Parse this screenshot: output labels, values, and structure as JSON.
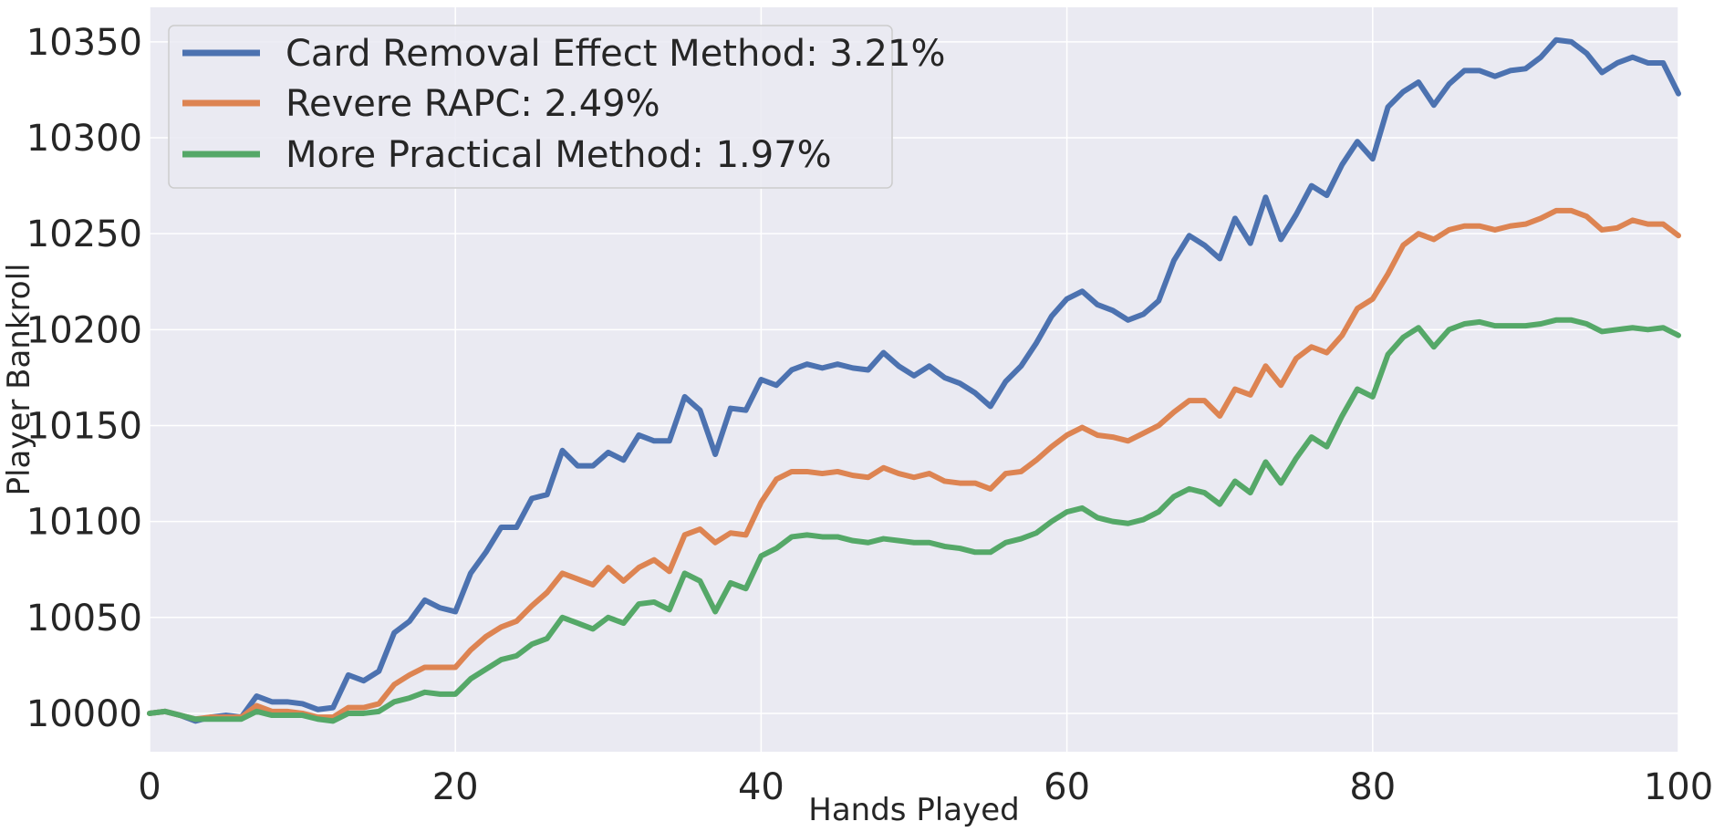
{
  "chart_data": {
    "type": "line",
    "title": "",
    "xlabel": "Hands Played",
    "ylabel": "Player Bankroll",
    "xlim": [
      0,
      100
    ],
    "ylim": [
      9980,
      10368
    ],
    "xticks": [
      0,
      20,
      40,
      60,
      80,
      100
    ],
    "yticks": [
      10000,
      10050,
      10100,
      10150,
      10200,
      10250,
      10300,
      10350
    ],
    "grid": true,
    "legend_position": "top-left",
    "colors": {
      "background": "#eaeaf2",
      "grid": "#ffffff",
      "text": "#262626"
    },
    "series": [
      {
        "name": "Card Removal Effect Method: 3.21%",
        "color": "#4c72b0",
        "values": [
          10000,
          10001,
          9999,
          9996,
          9998,
          9999,
          9998,
          10009,
          10006,
          10006,
          10005,
          10002,
          10003,
          10020,
          10017,
          10022,
          10042,
          10048,
          10059,
          10055,
          10053,
          10073,
          10084,
          10097,
          10097,
          10112,
          10114,
          10137,
          10129,
          10129,
          10136,
          10132,
          10145,
          10142,
          10142,
          10165,
          10158,
          10135,
          10159,
          10158,
          10174,
          10171,
          10179,
          10182,
          10180,
          10182,
          10180,
          10179,
          10188,
          10181,
          10176,
          10181,
          10175,
          10172,
          10167,
          10160,
          10173,
          10181,
          10193,
          10207,
          10216,
          10220,
          10213,
          10210,
          10205,
          10208,
          10215,
          10236,
          10249,
          10244,
          10237,
          10258,
          10245,
          10269,
          10247,
          10260,
          10275,
          10270,
          10286,
          10298,
          10289,
          10316,
          10324,
          10329,
          10317,
          10328,
          10335,
          10335,
          10332,
          10335,
          10336,
          10342,
          10351,
          10350,
          10344,
          10334,
          10339,
          10342,
          10339,
          10339,
          10323
        ]
      },
      {
        "name": "Revere RAPC: 2.49%",
        "color": "#dd8452",
        "values": [
          10000,
          10001,
          9999,
          9997,
          9998,
          9998,
          9998,
          10004,
          10001,
          10001,
          10000,
          9998,
          9998,
          10003,
          10003,
          10005,
          10015,
          10020,
          10024,
          10024,
          10024,
          10033,
          10040,
          10045,
          10048,
          10056,
          10063,
          10073,
          10070,
          10067,
          10076,
          10069,
          10076,
          10080,
          10074,
          10093,
          10096,
          10089,
          10094,
          10093,
          10110,
          10122,
          10126,
          10126,
          10125,
          10126,
          10124,
          10123,
          10128,
          10125,
          10123,
          10125,
          10121,
          10120,
          10120,
          10117,
          10125,
          10126,
          10132,
          10139,
          10145,
          10149,
          10145,
          10144,
          10142,
          10146,
          10150,
          10157,
          10163,
          10163,
          10155,
          10169,
          10166,
          10181,
          10171,
          10185,
          10191,
          10188,
          10197,
          10211,
          10216,
          10229,
          10244,
          10250,
          10247,
          10252,
          10254,
          10254,
          10252,
          10254,
          10255,
          10258,
          10262,
          10262,
          10259,
          10252,
          10253,
          10257,
          10255,
          10255,
          10249
        ]
      },
      {
        "name": "More Practical Method: 1.97%",
        "color": "#55a868",
        "values": [
          10000,
          10001,
          9999,
          9997,
          9997,
          9997,
          9997,
          10001,
          9999,
          9999,
          9999,
          9997,
          9996,
          10000,
          10000,
          10001,
          10006,
          10008,
          10011,
          10010,
          10010,
          10018,
          10023,
          10028,
          10030,
          10036,
          10039,
          10050,
          10047,
          10044,
          10050,
          10047,
          10057,
          10058,
          10054,
          10073,
          10069,
          10053,
          10068,
          10065,
          10082,
          10086,
          10092,
          10093,
          10092,
          10092,
          10090,
          10089,
          10091,
          10090,
          10089,
          10089,
          10087,
          10086,
          10084,
          10084,
          10089,
          10091,
          10094,
          10100,
          10105,
          10107,
          10102,
          10100,
          10099,
          10101,
          10105,
          10113,
          10117,
          10115,
          10109,
          10121,
          10115,
          10131,
          10120,
          10133,
          10144,
          10139,
          10155,
          10169,
          10165,
          10187,
          10196,
          10201,
          10191,
          10200,
          10203,
          10204,
          10202,
          10202,
          10202,
          10203,
          10205,
          10205,
          10203,
          10199,
          10200,
          10201,
          10200,
          10201,
          10197
        ]
      }
    ]
  }
}
